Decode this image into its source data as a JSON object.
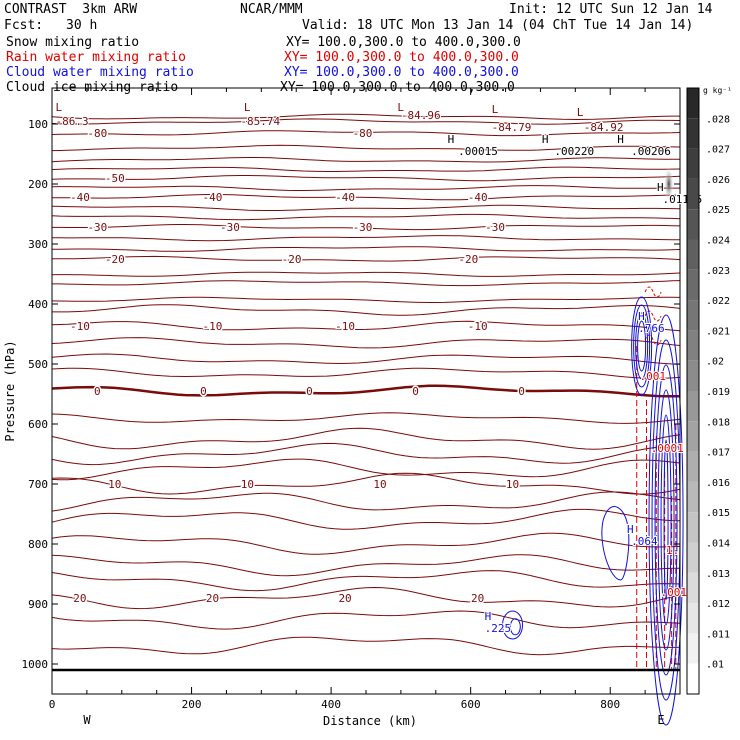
{
  "header": {
    "model": "CONTRAST  3km ARW",
    "org": "NCAR/MMM",
    "init": "Init: 12 UTC Sun 12 Jan 14",
    "fcst_label": "Fcst:",
    "fcst_value": "30 h",
    "valid": "Valid: 18 UTC Mon 13 Jan 14 (04 ChT Tue 14 Jan 14)"
  },
  "fields": [
    {
      "name": "Snow mixing ratio",
      "xy": "XY= 100.0,300.0 to 400.0,300.0",
      "color": "#000000"
    },
    {
      "name": "Rain water mixing ratio",
      "xy": "XY= 100.0,300.0 to 400.0,300.0",
      "color": "#e00000"
    },
    {
      "name": "Cloud water mixing ratio",
      "xy": "XY= 100.0,300.0 to 400.0,300.0",
      "color": "#1010e0"
    },
    {
      "name": "Cloud ice mixing ratio",
      "xy": "XY= 100.0,300.0 to 400.0,300.0",
      "color": "#000000"
    }
  ],
  "chart_data": {
    "type": "contour",
    "xlabel": "Distance (km)",
    "ylabel": "Pressure (hPa)",
    "xlim": [
      0,
      900
    ],
    "ylim": [
      1050,
      40
    ],
    "x_ticks": [
      0,
      200,
      400,
      600,
      800
    ],
    "y_ticks": [
      100,
      200,
      300,
      400,
      500,
      600,
      700,
      800,
      900,
      1000
    ],
    "x_end_labels": [
      "W",
      "E"
    ],
    "temperature_contours": [
      {
        "value": -80,
        "pressure": 115,
        "labels": [
          "-80",
          "-80"
        ]
      },
      {
        "value": -50,
        "pressure": 190,
        "labels": [
          "-50"
        ]
      },
      {
        "value": -40,
        "pressure": 222,
        "labels": [
          "-40",
          "-40",
          "-40",
          "-40"
        ]
      },
      {
        "value": -30,
        "pressure": 272,
        "labels": [
          "-30",
          "-30",
          "-30",
          "-30"
        ]
      },
      {
        "value": -20,
        "pressure": 325,
        "labels": [
          "-20",
          "-20",
          "-20"
        ]
      },
      {
        "value": -10,
        "pressure": 437,
        "labels": [
          "-10",
          "-10",
          "-10",
          "-10"
        ]
      },
      {
        "value": 0,
        "pressure": 545,
        "labels": [
          "0",
          "0",
          "0",
          "0",
          "0"
        ]
      },
      {
        "value": 10,
        "pressure": 700,
        "labels": [
          "10",
          "10",
          "10",
          "10"
        ]
      },
      {
        "value": 20,
        "pressure": 890,
        "labels": [
          "20",
          "20",
          "20",
          "20"
        ]
      }
    ],
    "annotations": [
      {
        "text": "L",
        "x": 5,
        "p": 72
      },
      {
        "text": "-86.3",
        "x": 5,
        "p": 95
      },
      {
        "text": "L",
        "x": 275,
        "p": 72
      },
      {
        "text": "-85.74",
        "x": 270,
        "p": 95
      },
      {
        "text": "L",
        "x": 495,
        "p": 72
      },
      {
        "text": "-84.96",
        "x": 500,
        "p": 85
      },
      {
        "text": "L",
        "x": 630,
        "p": 75
      },
      {
        "text": "-84.79",
        "x": 630,
        "p": 105
      },
      {
        "text": "L",
        "x": 752,
        "p": 80
      },
      {
        "text": "-84.92",
        "x": 762,
        "p": 105
      },
      {
        "text": "H",
        "x": 567,
        "p": 125
      },
      {
        "text": ".00015",
        "x": 582,
        "p": 145
      },
      {
        "text": "H",
        "x": 702,
        "p": 125
      },
      {
        "text": ".00220",
        "x": 720,
        "p": 145
      },
      {
        "text": "H",
        "x": 810,
        "p": 125
      },
      {
        "text": ".00206",
        "x": 830,
        "p": 145
      },
      {
        "text": "H",
        "x": 867,
        "p": 205
      },
      {
        "text": ".01155",
        "x": 875,
        "p": 225
      },
      {
        "text": "H",
        "x": 824,
        "p": 775
      },
      {
        "text": ".064",
        "x": 830,
        "p": 795
      },
      {
        "text": "H",
        "x": 620,
        "p": 920
      },
      {
        "text": ".225",
        "x": 620,
        "p": 940
      },
      {
        "text": "H",
        "x": 840,
        "p": 420
      },
      {
        "text": ".766",
        "x": 840,
        "p": 440
      },
      {
        "text": ".001",
        "x": 842,
        "p": 520
      },
      {
        "text": ".0001",
        "x": 858,
        "p": 640
      },
      {
        "text": ".001",
        "x": 872,
        "p": 880
      },
      {
        "text": "1.",
        "x": 880,
        "p": 810
      }
    ],
    "colorbar": {
      "unit": "g kg⁻¹",
      "labels": [
        ".028",
        ".027",
        ".026",
        ".025",
        ".024",
        ".023",
        ".022",
        ".021",
        ".02",
        ".019",
        ".018",
        ".017",
        ".016",
        ".015",
        ".014",
        ".013",
        ".012",
        ".011",
        ".01"
      ]
    }
  }
}
